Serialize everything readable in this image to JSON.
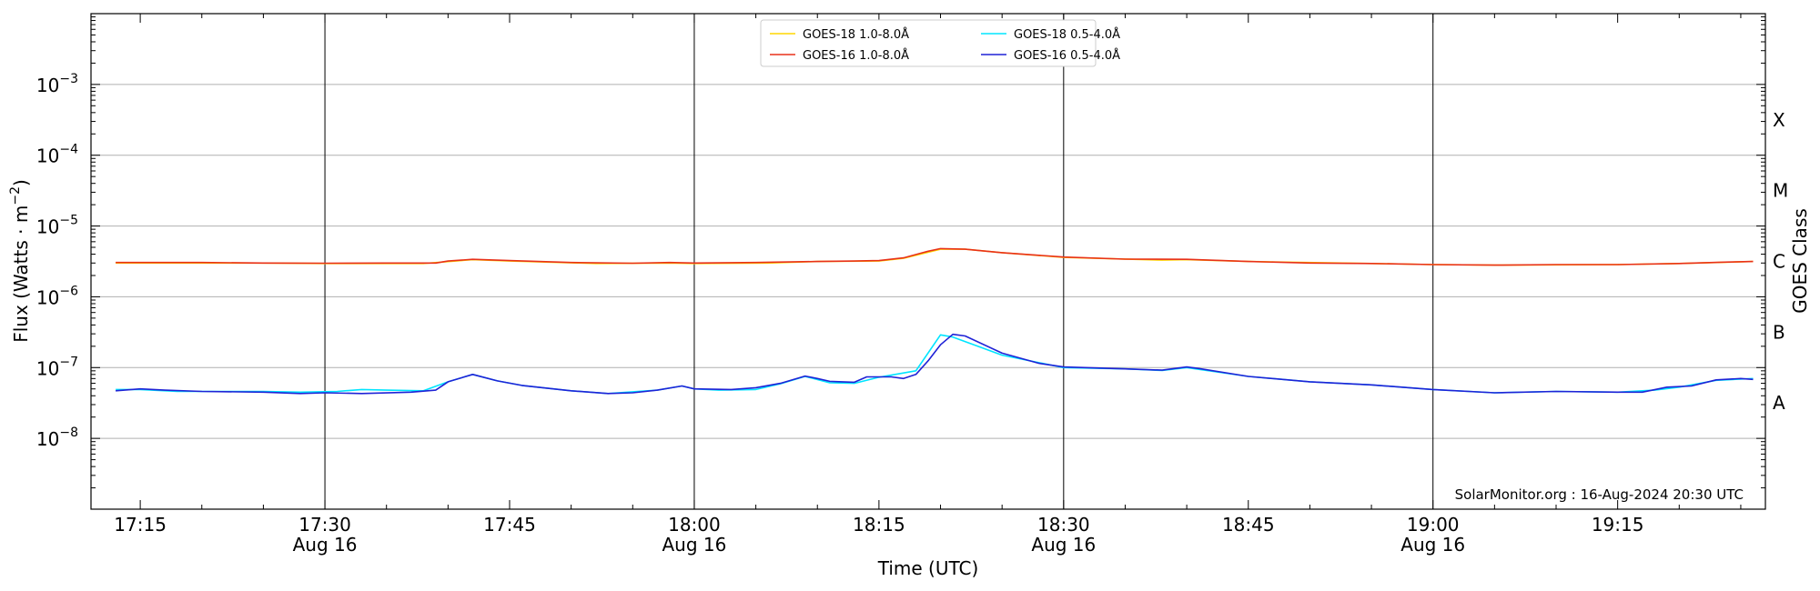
{
  "chart_data": {
    "type": "line",
    "xlabel": "Time (UTC)",
    "ylabel": "Flux (Watts · m",
    "ylabel_sup": "−2",
    "ylabel_end": ")",
    "right_label": "GOES Class",
    "y_scale": "log",
    "ylim": [
      1e-09,
      0.01
    ],
    "xlim_minutes": [
      "17:11",
      "19:27"
    ],
    "grid": "horizontal at each decade; vertical lines at half-hours",
    "legend_position": "top-center",
    "watermark": "SolarMonitor.org : 16-Aug-2024 20:30 UTC",
    "x_ticks": [
      {
        "time": "17:15",
        "label": "17:15",
        "sublabel": ""
      },
      {
        "time": "17:30",
        "label": "17:30",
        "sublabel": "Aug 16"
      },
      {
        "time": "17:45",
        "label": "17:45",
        "sublabel": ""
      },
      {
        "time": "18:00",
        "label": "18:00",
        "sublabel": "Aug 16"
      },
      {
        "time": "18:15",
        "label": "18:15",
        "sublabel": ""
      },
      {
        "time": "18:30",
        "label": "18:30",
        "sublabel": "Aug 16"
      },
      {
        "time": "18:45",
        "label": "18:45",
        "sublabel": ""
      },
      {
        "time": "19:00",
        "label": "19:00",
        "sublabel": "Aug 16"
      },
      {
        "time": "19:15",
        "label": "19:15",
        "sublabel": ""
      }
    ],
    "vlines": [
      "17:30",
      "18:00",
      "18:30",
      "19:00"
    ],
    "y_ticks": [
      {
        "value": 1e-08,
        "base": "10",
        "exp": "−8"
      },
      {
        "value": 1e-07,
        "base": "10",
        "exp": "−7"
      },
      {
        "value": 1e-06,
        "base": "10",
        "exp": "−6"
      },
      {
        "value": 1e-05,
        "base": "10",
        "exp": "−5"
      },
      {
        "value": 0.0001,
        "base": "10",
        "exp": "−4"
      },
      {
        "value": 0.001,
        "base": "10",
        "exp": "−3"
      }
    ],
    "classes": [
      {
        "label": "A",
        "value": 3.16e-08
      },
      {
        "label": "B",
        "value": 3.16e-07
      },
      {
        "label": "C",
        "value": 3.16e-06
      },
      {
        "label": "M",
        "value": 3.16e-05
      },
      {
        "label": "X",
        "value": 0.000316
      }
    ],
    "series": [
      {
        "name": "GOES-18 1.0-8.0Å",
        "color": "#ffd700",
        "points": [
          [
            "17:13",
            3e-06
          ],
          [
            "17:25",
            3e-06
          ],
          [
            "17:30",
            2.95e-06
          ],
          [
            "17:38",
            2.95e-06
          ],
          [
            "17:42",
            3.35e-06
          ],
          [
            "17:45",
            3.2e-06
          ],
          [
            "17:52",
            2.95e-06
          ],
          [
            "17:58",
            3e-06
          ],
          [
            "18:00",
            2.95e-06
          ],
          [
            "18:06",
            3e-06
          ],
          [
            "18:10",
            3.15e-06
          ],
          [
            "18:15",
            3.2e-06
          ],
          [
            "18:17",
            3.5e-06
          ],
          [
            "18:20",
            4.7e-06
          ],
          [
            "18:22",
            4.7e-06
          ],
          [
            "18:25",
            4.2e-06
          ],
          [
            "18:30",
            3.6e-06
          ],
          [
            "18:38",
            3.3e-06
          ],
          [
            "18:40",
            3.35e-06
          ],
          [
            "18:45",
            3.15e-06
          ],
          [
            "18:55",
            2.95e-06
          ],
          [
            "19:00",
            2.85e-06
          ],
          [
            "19:05",
            2.8e-06
          ],
          [
            "19:15",
            2.85e-06
          ],
          [
            "19:20",
            2.95e-06
          ],
          [
            "19:26",
            3.15e-06
          ]
        ]
      },
      {
        "name": "GOES-16 1.0-8.0Å",
        "color": "#e8311a",
        "points": [
          [
            "17:13",
            3.05e-06
          ],
          [
            "17:20",
            3.05e-06
          ],
          [
            "17:25",
            3e-06
          ],
          [
            "17:30",
            2.98e-06
          ],
          [
            "17:35",
            3e-06
          ],
          [
            "17:39",
            3e-06
          ],
          [
            "17:40",
            3.2e-06
          ],
          [
            "17:42",
            3.38e-06
          ],
          [
            "17:45",
            3.25e-06
          ],
          [
            "17:50",
            3.05e-06
          ],
          [
            "17:55",
            2.98e-06
          ],
          [
            "17:58",
            3.05e-06
          ],
          [
            "18:00",
            3e-06
          ],
          [
            "18:05",
            3.05e-06
          ],
          [
            "18:10",
            3.15e-06
          ],
          [
            "18:13",
            3.2e-06
          ],
          [
            "18:15",
            3.25e-06
          ],
          [
            "18:17",
            3.55e-06
          ],
          [
            "18:19",
            4.4e-06
          ],
          [
            "18:20",
            4.8e-06
          ],
          [
            "18:22",
            4.7e-06
          ],
          [
            "18:25",
            4.2e-06
          ],
          [
            "18:28",
            3.85e-06
          ],
          [
            "18:30",
            3.65e-06
          ],
          [
            "18:35",
            3.4e-06
          ],
          [
            "18:40",
            3.38e-06
          ],
          [
            "18:45",
            3.15e-06
          ],
          [
            "18:50",
            3e-06
          ],
          [
            "18:55",
            2.95e-06
          ],
          [
            "19:00",
            2.85e-06
          ],
          [
            "19:05",
            2.8e-06
          ],
          [
            "19:10",
            2.85e-06
          ],
          [
            "19:15",
            2.85e-06
          ],
          [
            "19:20",
            2.95e-06
          ],
          [
            "19:24",
            3.1e-06
          ],
          [
            "19:26",
            3.15e-06
          ]
        ]
      },
      {
        "name": "GOES-18 0.5-4.0Å",
        "color": "#00e5ff",
        "points": [
          [
            "17:13",
            4.9e-08
          ],
          [
            "17:15",
            4.9e-08
          ],
          [
            "17:18",
            4.6e-08
          ],
          [
            "17:22",
            4.6e-08
          ],
          [
            "17:25",
            4.6e-08
          ],
          [
            "17:28",
            4.5e-08
          ],
          [
            "17:31",
            4.6e-08
          ],
          [
            "17:33",
            4.9e-08
          ],
          [
            "17:35",
            4.8e-08
          ],
          [
            "17:38",
            4.7e-08
          ],
          [
            "17:40",
            6.3e-08
          ],
          [
            "17:42",
            8e-08
          ],
          [
            "17:44",
            6.5e-08
          ],
          [
            "17:46",
            5.6e-08
          ],
          [
            "17:50",
            4.7e-08
          ],
          [
            "17:53",
            4.3e-08
          ],
          [
            "17:57",
            4.8e-08
          ],
          [
            "17:59",
            5.5e-08
          ],
          [
            "18:00",
            5e-08
          ],
          [
            "18:02",
            4.8e-08
          ],
          [
            "18:05",
            4.9e-08
          ],
          [
            "18:07",
            5.9e-08
          ],
          [
            "18:09",
            7.5e-08
          ],
          [
            "18:11",
            6.1e-08
          ],
          [
            "18:13",
            6e-08
          ],
          [
            "18:15",
            7.3e-08
          ],
          [
            "18:18",
            9e-08
          ],
          [
            "18:20",
            2.9e-07
          ],
          [
            "18:21",
            2.7e-07
          ],
          [
            "18:25",
            1.5e-07
          ],
          [
            "18:30",
            1e-07
          ],
          [
            "18:35",
            9.6e-08
          ],
          [
            "18:38",
            9.1e-08
          ],
          [
            "18:40",
            1e-07
          ],
          [
            "18:45",
            7.5e-08
          ],
          [
            "18:50",
            6.3e-08
          ],
          [
            "18:55",
            5.7e-08
          ],
          [
            "19:00",
            4.9e-08
          ],
          [
            "19:05",
            4.4e-08
          ],
          [
            "19:10",
            4.6e-08
          ],
          [
            "19:15",
            4.5e-08
          ],
          [
            "19:18",
            4.8e-08
          ],
          [
            "19:20",
            5.3e-08
          ],
          [
            "19:23",
            6.6e-08
          ],
          [
            "19:26",
            7e-08
          ]
        ]
      },
      {
        "name": "GOES-16 0.5-4.0Å",
        "color": "#1f22d6",
        "points": [
          [
            "17:13",
            4.7e-08
          ],
          [
            "17:15",
            5e-08
          ],
          [
            "17:17",
            4.8e-08
          ],
          [
            "17:20",
            4.6e-08
          ],
          [
            "17:25",
            4.5e-08
          ],
          [
            "17:28",
            4.3e-08
          ],
          [
            "17:30",
            4.4e-08
          ],
          [
            "17:33",
            4.3e-08
          ],
          [
            "17:37",
            4.5e-08
          ],
          [
            "17:39",
            4.8e-08
          ],
          [
            "17:40",
            6.3e-08
          ],
          [
            "17:42",
            8e-08
          ],
          [
            "17:44",
            6.5e-08
          ],
          [
            "17:46",
            5.6e-08
          ],
          [
            "17:50",
            4.7e-08
          ],
          [
            "17:53",
            4.3e-08
          ],
          [
            "17:55",
            4.4e-08
          ],
          [
            "17:57",
            4.8e-08
          ],
          [
            "17:59",
            5.5e-08
          ],
          [
            "18:00",
            5e-08
          ],
          [
            "18:03",
            4.9e-08
          ],
          [
            "18:05",
            5.2e-08
          ],
          [
            "18:07",
            6e-08
          ],
          [
            "18:09",
            7.6e-08
          ],
          [
            "18:10",
            7e-08
          ],
          [
            "18:11",
            6.4e-08
          ],
          [
            "18:13",
            6.2e-08
          ],
          [
            "18:14",
            7.4e-08
          ],
          [
            "18:16",
            7.4e-08
          ],
          [
            "18:17",
            7e-08
          ],
          [
            "18:18",
            8e-08
          ],
          [
            "18:19",
            1.25e-07
          ],
          [
            "18:20",
            2.1e-07
          ],
          [
            "18:21",
            2.95e-07
          ],
          [
            "18:22",
            2.8e-07
          ],
          [
            "18:25",
            1.6e-07
          ],
          [
            "18:28",
            1.15e-07
          ],
          [
            "18:30",
            1.02e-07
          ],
          [
            "18:35",
            9.6e-08
          ],
          [
            "18:38",
            9.2e-08
          ],
          [
            "18:40",
            1.02e-07
          ],
          [
            "18:41",
            9.7e-08
          ],
          [
            "18:45",
            7.5e-08
          ],
          [
            "18:50",
            6.3e-08
          ],
          [
            "18:55",
            5.7e-08
          ],
          [
            "19:00",
            4.9e-08
          ],
          [
            "19:05",
            4.4e-08
          ],
          [
            "19:10",
            4.6e-08
          ],
          [
            "19:15",
            4.5e-08
          ],
          [
            "19:17",
            4.5e-08
          ],
          [
            "19:19",
            5.3e-08
          ],
          [
            "19:21",
            5.5e-08
          ],
          [
            "19:23",
            6.7e-08
          ],
          [
            "19:25",
            7e-08
          ],
          [
            "19:26",
            6.8e-08
          ]
        ]
      }
    ]
  }
}
